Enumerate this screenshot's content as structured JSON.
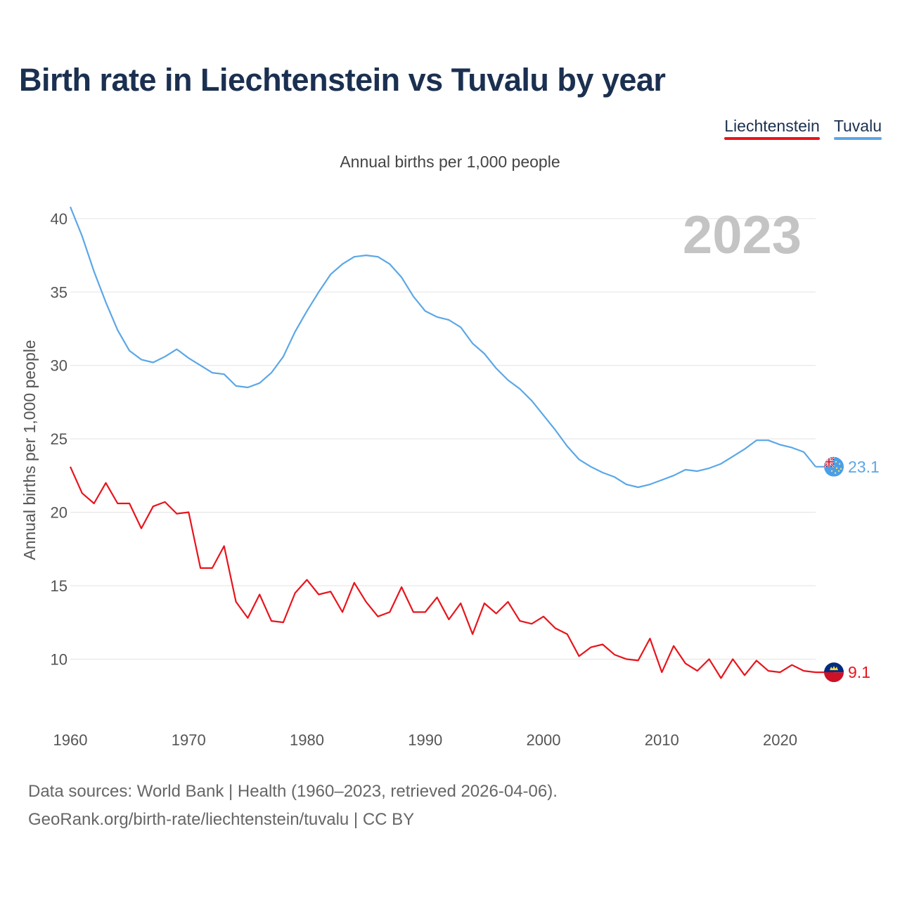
{
  "title": "Birth rate in Liechtenstein vs Tuvalu by year",
  "subtitle": "Annual births per 1,000 people",
  "legend": [
    {
      "label": "Liechtenstein",
      "color": "#e8141c"
    },
    {
      "label": "Tuvalu",
      "color": "#5ba7e7"
    }
  ],
  "year_watermark": "2023",
  "footer": {
    "line1": "Data sources: World Bank | Health (1960–2023, retrieved 2026-04-06).",
    "line2": "GeoRank.org/birth-rate/liechtenstein/tuvalu | CC BY"
  },
  "chart_data": {
    "type": "line",
    "title": "Birth rate in Liechtenstein vs Tuvalu by year",
    "xlabel": "",
    "ylabel": "Annual births per 1,000 people",
    "xlim": [
      1960,
      2023
    ],
    "ylim": [
      7,
      41
    ],
    "xticks": [
      1960,
      1970,
      1980,
      1990,
      2000,
      2010,
      2020
    ],
    "yticks": [
      10,
      15,
      20,
      25,
      30,
      35,
      40
    ],
    "grid": true,
    "legend_position": "top-right",
    "x": [
      1960,
      1961,
      1962,
      1963,
      1964,
      1965,
      1966,
      1967,
      1968,
      1969,
      1970,
      1971,
      1972,
      1973,
      1974,
      1975,
      1976,
      1977,
      1978,
      1979,
      1980,
      1981,
      1982,
      1983,
      1984,
      1985,
      1986,
      1987,
      1988,
      1989,
      1990,
      1991,
      1992,
      1993,
      1994,
      1995,
      1996,
      1997,
      1998,
      1999,
      2000,
      2001,
      2002,
      2003,
      2004,
      2005,
      2006,
      2007,
      2008,
      2009,
      2010,
      2011,
      2012,
      2013,
      2014,
      2015,
      2016,
      2017,
      2018,
      2019,
      2020,
      2021,
      2022,
      2023
    ],
    "series": [
      {
        "name": "Liechtenstein",
        "color": "#e8141c",
        "end_label": "9.1",
        "values": [
          23.1,
          21.3,
          20.6,
          22.0,
          20.6,
          20.6,
          18.9,
          20.4,
          20.7,
          19.9,
          20.0,
          16.2,
          16.2,
          17.7,
          13.9,
          12.8,
          14.4,
          12.6,
          12.5,
          14.5,
          15.4,
          14.4,
          14.6,
          13.2,
          15.2,
          13.9,
          12.9,
          13.2,
          14.9,
          13.2,
          13.2,
          14.2,
          12.7,
          13.8,
          11.7,
          13.8,
          13.1,
          13.9,
          12.6,
          12.4,
          12.9,
          12.1,
          11.7,
          10.2,
          10.8,
          11.0,
          10.3,
          10.0,
          9.9,
          11.4,
          9.1,
          10.9,
          9.7,
          9.2,
          10.0,
          8.7,
          10.0,
          8.9,
          9.9,
          9.2,
          9.1,
          9.6,
          9.2,
          9.1
        ]
      },
      {
        "name": "Tuvalu",
        "color": "#5ba7e7",
        "end_label": "23.1",
        "values": [
          40.8,
          38.8,
          36.4,
          34.3,
          32.4,
          31.0,
          30.4,
          30.2,
          30.6,
          31.1,
          30.5,
          30.0,
          29.5,
          29.4,
          28.6,
          28.5,
          28.8,
          29.5,
          30.6,
          32.3,
          33.7,
          35.0,
          36.2,
          36.9,
          37.4,
          37.5,
          37.4,
          36.9,
          36.0,
          34.7,
          33.7,
          33.3,
          33.1,
          32.6,
          31.5,
          30.8,
          29.8,
          29.0,
          28.4,
          27.6,
          26.6,
          25.6,
          24.5,
          23.6,
          23.1,
          22.7,
          22.4,
          21.9,
          21.7,
          21.9,
          22.2,
          22.5,
          22.9,
          22.8,
          23.0,
          23.3,
          23.8,
          24.3,
          24.9,
          24.9,
          24.6,
          24.4,
          24.1,
          23.1
        ]
      }
    ]
  }
}
